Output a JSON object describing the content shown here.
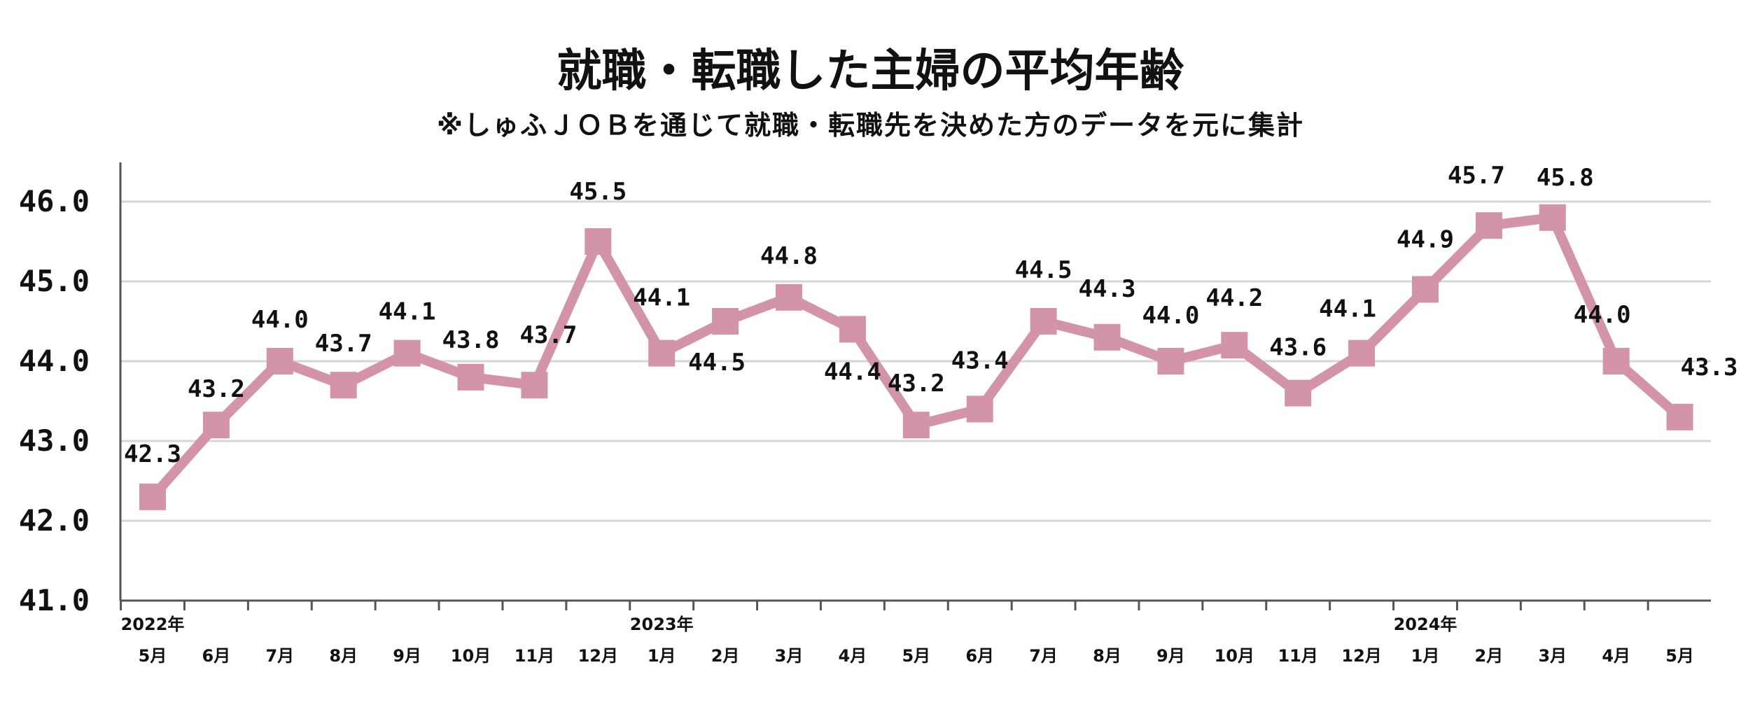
{
  "chart_data": {
    "type": "line",
    "title": "就職・転職した主婦の平均年齢",
    "subtitle": "※しゅふＪＯＢを通じて就職・転職先を決めた方のデータを元に集計",
    "ylim": [
      41.0,
      46.5
    ],
    "yticks": [
      "41.0",
      "42.0",
      "43.0",
      "44.0",
      "45.0",
      "46.0"
    ],
    "grid": true,
    "series_color": "#d393a9",
    "categories": [
      "5月",
      "6月",
      "7月",
      "8月",
      "9月",
      "10月",
      "11月",
      "12月",
      "1月",
      "2月",
      "3月",
      "4月",
      "5月",
      "6月",
      "7月",
      "8月",
      "9月",
      "10月",
      "11月",
      "12月",
      "1月",
      "2月",
      "3月",
      "4月",
      "5月"
    ],
    "year_labels": [
      {
        "index": 0,
        "label": "2022年"
      },
      {
        "index": 8,
        "label": "2023年"
      },
      {
        "index": 20,
        "label": "2024年"
      }
    ],
    "series": [
      {
        "name": "平均年齢",
        "values": [
          42.3,
          43.2,
          44.0,
          43.7,
          44.1,
          43.8,
          43.7,
          45.5,
          44.1,
          44.5,
          44.8,
          44.4,
          43.2,
          43.4,
          44.5,
          44.3,
          44.0,
          44.2,
          43.6,
          44.1,
          44.9,
          45.7,
          45.8,
          44.0,
          43.3
        ],
        "labels": [
          "42.3",
          "43.2",
          "44.0",
          "43.7",
          "44.1",
          "43.8",
          "43.7",
          "45.5",
          "44.1",
          "44.5",
          "44.8",
          "44.4",
          "43.2",
          "43.4",
          "44.5",
          "44.3",
          "44.0",
          "44.2",
          "43.6",
          "44.1",
          "44.9",
          "45.7",
          "45.8",
          "44.0",
          "43.3"
        ]
      }
    ]
  }
}
